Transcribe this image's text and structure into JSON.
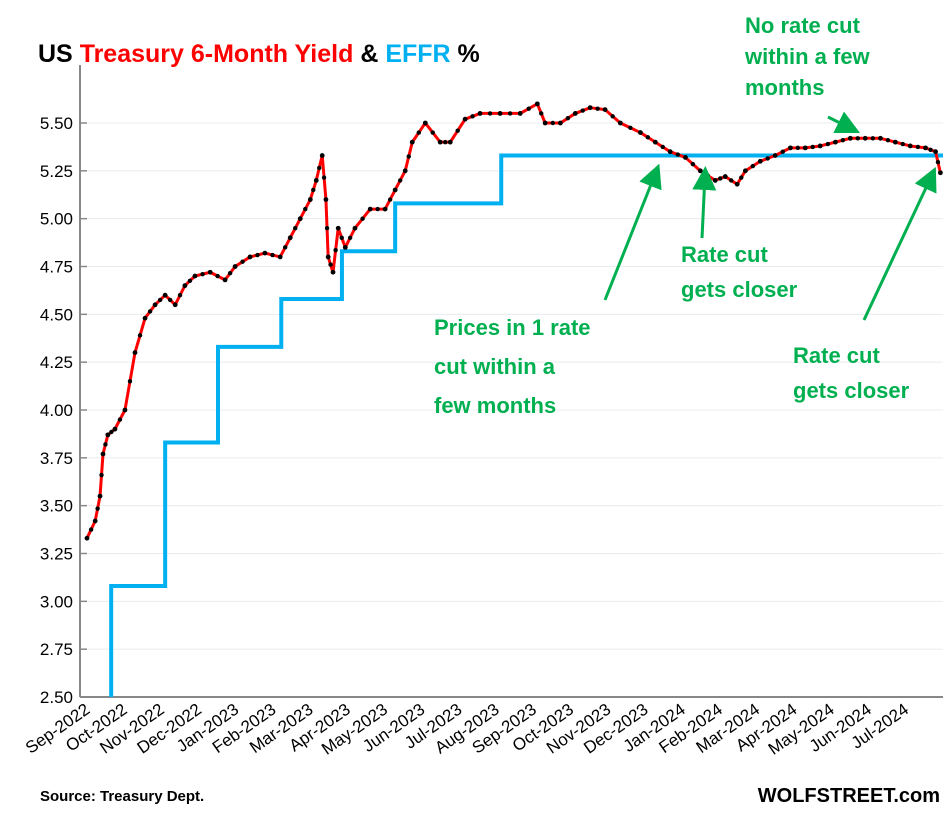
{
  "chart_data": {
    "type": "line",
    "title": {
      "part1": "US ",
      "part2": "Treasury 6-Month Yield",
      "part3": " & ",
      "part4": "EFFR",
      "part5": " %"
    },
    "x_unit": "months since Sep-2022",
    "xlim": [
      0,
      23
    ],
    "ylim": [
      2.5,
      5.5
    ],
    "yticks": [
      "2.50",
      "2.75",
      "3.00",
      "3.25",
      "3.50",
      "3.75",
      "4.00",
      "4.25",
      "4.50",
      "4.75",
      "5.00",
      "5.25",
      "5.50"
    ],
    "xtick_labels": [
      "Sep-2022",
      "Oct-2022",
      "Nov-2022",
      "Dec-2022",
      "Jan-2023",
      "Feb-2023",
      "Mar-2023",
      "Apr-2023",
      "May-2023",
      "Jun-2023",
      "Jul-2023",
      "Aug-2023",
      "Sep-2023",
      "Oct-2023",
      "Nov-2023",
      "Dec-2023",
      "Jan-2024",
      "Feb-2024",
      "Mar-2024",
      "Apr-2024",
      "May-2024",
      "Jun-2024",
      "Jul-2024"
    ],
    "series": [
      {
        "name": "Treasury 6-Month Yield",
        "color": "#ff0000",
        "marker_color": "#000000",
        "x": [
          0,
          0.22,
          0.35,
          0.43,
          0.56,
          0.75,
          1.02,
          1.29,
          1.56,
          1.83,
          2.1,
          2.37,
          2.63,
          2.9,
          3.31,
          3.71,
          3.98,
          4.38,
          4.78,
          5.19,
          5.46,
          5.73,
          6.0,
          6.16,
          6.32,
          6.42,
          6.48,
          6.61,
          6.75,
          6.94,
          7.2,
          7.61,
          8.01,
          8.28,
          8.55,
          8.74,
          9.09,
          9.49,
          9.76,
          10.16,
          10.56,
          11.1,
          11.64,
          12.1,
          12.31,
          12.72,
          13.12,
          13.52,
          13.92,
          14.33,
          14.87,
          15.27,
          15.67,
          16.08,
          16.48,
          16.88,
          17.15,
          17.47,
          17.69,
          18.09,
          18.49,
          18.9,
          19.3,
          19.7,
          20.11,
          20.51,
          20.91,
          21.32,
          21.72,
          22.12,
          22.53,
          22.8,
          22.93
        ],
        "y": [
          3.33,
          3.42,
          3.55,
          3.77,
          3.87,
          3.9,
          4.0,
          4.3,
          4.48,
          4.55,
          4.6,
          4.55,
          4.65,
          4.7,
          4.72,
          4.68,
          4.75,
          4.8,
          4.82,
          4.8,
          4.9,
          5.0,
          5.1,
          5.2,
          5.33,
          5.1,
          4.8,
          4.72,
          4.95,
          4.85,
          4.95,
          5.05,
          5.05,
          5.15,
          5.25,
          5.4,
          5.5,
          5.4,
          5.4,
          5.52,
          5.55,
          5.55,
          5.55,
          5.6,
          5.5,
          5.5,
          5.55,
          5.58,
          5.57,
          5.5,
          5.45,
          5.4,
          5.35,
          5.32,
          5.25,
          5.2,
          5.22,
          5.18,
          5.25,
          5.3,
          5.33,
          5.37,
          5.37,
          5.38,
          5.4,
          5.42,
          5.42,
          5.42,
          5.4,
          5.38,
          5.37,
          5.35,
          5.24
        ]
      },
      {
        "name": "EFFR",
        "color": "#00b0f0",
        "step": true,
        "x": [
          0,
          0.65,
          2.1,
          3.52,
          5.22,
          6.85,
          8.28,
          11.13,
          23
        ],
        "y": [
          2.33,
          3.08,
          3.83,
          4.33,
          4.58,
          4.83,
          5.08,
          5.33,
          5.33
        ]
      }
    ],
    "annotations": [
      {
        "lines": [
          "No rate cut",
          "within a few",
          "months"
        ]
      },
      {
        "lines": [
          "Prices in  1 rate",
          "cut within a",
          "few months"
        ]
      },
      {
        "lines": [
          "Rate cut",
          "gets closer"
        ]
      },
      {
        "lines": [
          "Rate cut",
          "gets closer"
        ]
      }
    ],
    "annotation_color": "#00b050",
    "source": "Source: Treasury Dept.",
    "brand": "WOLFSTREET.com"
  }
}
